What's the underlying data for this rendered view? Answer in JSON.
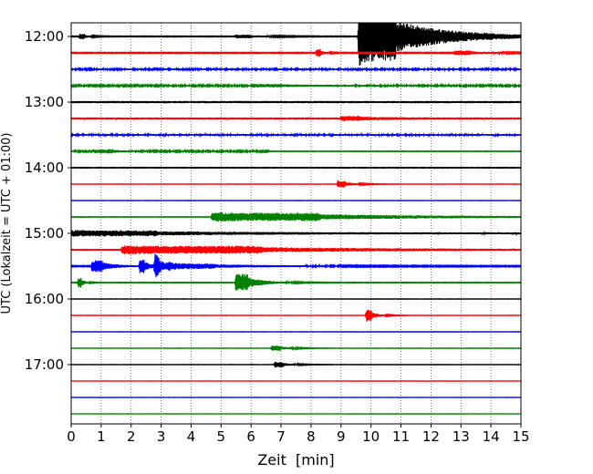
{
  "chart_data": {
    "type": "line",
    "title": "",
    "xlabel": "Zeit  [min]",
    "ylabel": "UTC (Lokalzeit = UTC + 01:00)",
    "xlim": [
      0,
      15
    ],
    "x_ticks": [
      "0",
      "1",
      "2",
      "3",
      "4",
      "5",
      "6",
      "7",
      "8",
      "9",
      "10",
      "11",
      "12",
      "13",
      "14",
      "15"
    ],
    "y_ticks": [
      "12:00",
      "13:00",
      "14:00",
      "15:00",
      "16:00",
      "17:00"
    ],
    "grid": "vertical dotted at each minute",
    "trace_colors": [
      "#000000",
      "#ff0000",
      "#0000ff",
      "#008000"
    ],
    "traces": [
      {
        "start": "12:00",
        "color": "#000000",
        "base": 0.12,
        "events": [
          {
            "t": 0.3,
            "amp": 1.0,
            "dur": 0.4
          },
          {
            "t": 5.5,
            "amp": 0.6,
            "dur": 1.5
          },
          {
            "t": 9.6,
            "amp": 10.0,
            "dur": 3.5
          }
        ]
      },
      {
        "start": "12:15",
        "color": "#ff0000",
        "base": 0.14,
        "events": [
          {
            "t": 8.2,
            "amp": 1.5,
            "dur": 0.3
          },
          {
            "t": 12.8,
            "amp": 0.8,
            "dur": 1.5
          }
        ]
      },
      {
        "start": "12:30",
        "color": "#0000ff",
        "base": 0.28,
        "events": []
      },
      {
        "start": "12:45",
        "color": "#008000",
        "base": 0.26,
        "events": [
          {
            "t": 6.0,
            "amp": 0.4,
            "dur": 3.0
          }
        ]
      },
      {
        "start": "13:00",
        "color": "#000000",
        "base": 0.38,
        "events": []
      },
      {
        "start": "13:15",
        "color": "#ff0000",
        "base": 0.36,
        "events": [
          {
            "t": 9.0,
            "amp": 0.6,
            "dur": 2.0
          }
        ]
      },
      {
        "start": "13:30",
        "color": "#0000ff",
        "base": 0.3,
        "events": []
      },
      {
        "start": "13:45",
        "color": "#008000",
        "base": 0.26,
        "end": 6.6,
        "events": [
          {
            "t": 1.2,
            "amp": 0.6,
            "dur": 0.6
          }
        ]
      },
      {
        "start": "14:00",
        "color": "#000000",
        "base": 0.1,
        "events": []
      },
      {
        "start": "14:15",
        "color": "#ff0000",
        "base": 0.06,
        "events": [
          {
            "t": 8.9,
            "amp": 1.3,
            "dur": 0.7
          }
        ]
      },
      {
        "start": "14:30",
        "color": "#0000ff",
        "base": 0.06,
        "events": []
      },
      {
        "start": "14:45",
        "color": "#008000",
        "base": 0.08,
        "events": [
          {
            "t": 4.7,
            "amp": 1.6,
            "dur": 10.3
          }
        ]
      },
      {
        "start": "15:00",
        "color": "#000000",
        "base": 0.28,
        "events": [
          {
            "t": 0.0,
            "amp": 0.9,
            "dur": 8.2
          }
        ]
      },
      {
        "start": "15:15",
        "color": "#ff0000",
        "base": 0.1,
        "events": [
          {
            "t": 1.7,
            "amp": 1.5,
            "dur": 13.3
          }
        ]
      },
      {
        "start": "15:30",
        "color": "#0000ff",
        "base": 0.16,
        "events": [
          {
            "t": 0.7,
            "amp": 2.2,
            "dur": 1.0
          },
          {
            "t": 2.3,
            "amp": 2.8,
            "dur": 0.4
          },
          {
            "t": 2.8,
            "amp": 4.2,
            "dur": 0.4
          },
          {
            "t": 3.2,
            "amp": 0.9,
            "dur": 4.6
          }
        ]
      },
      {
        "start": "15:45",
        "color": "#008000",
        "base": 0.1,
        "events": [
          {
            "t": 0.25,
            "amp": 2.2,
            "dur": 0.25
          },
          {
            "t": 5.5,
            "amp": 3.4,
            "dur": 1.1
          }
        ]
      },
      {
        "start": "16:00",
        "color": "#000000",
        "base": 0.06,
        "events": []
      },
      {
        "start": "16:15",
        "color": "#ff0000",
        "base": 0.06,
        "events": [
          {
            "t": 9.85,
            "amp": 2.2,
            "dur": 0.5
          }
        ]
      },
      {
        "start": "16:30",
        "color": "#0000ff",
        "base": 0.06,
        "events": []
      },
      {
        "start": "16:45",
        "color": "#008000",
        "base": 0.06,
        "events": [
          {
            "t": 6.7,
            "amp": 1.0,
            "dur": 0.8
          }
        ]
      },
      {
        "start": "17:00",
        "color": "#000000",
        "base": 0.06,
        "events": [
          {
            "t": 6.8,
            "amp": 1.0,
            "dur": 0.8
          }
        ]
      },
      {
        "start": "17:15",
        "color": "#ff0000",
        "base": 0.05,
        "events": []
      },
      {
        "start": "17:30",
        "color": "#0000ff",
        "base": 0.05,
        "events": []
      },
      {
        "start": "17:45",
        "color": "#008000",
        "base": 0.05,
        "events": []
      }
    ]
  }
}
